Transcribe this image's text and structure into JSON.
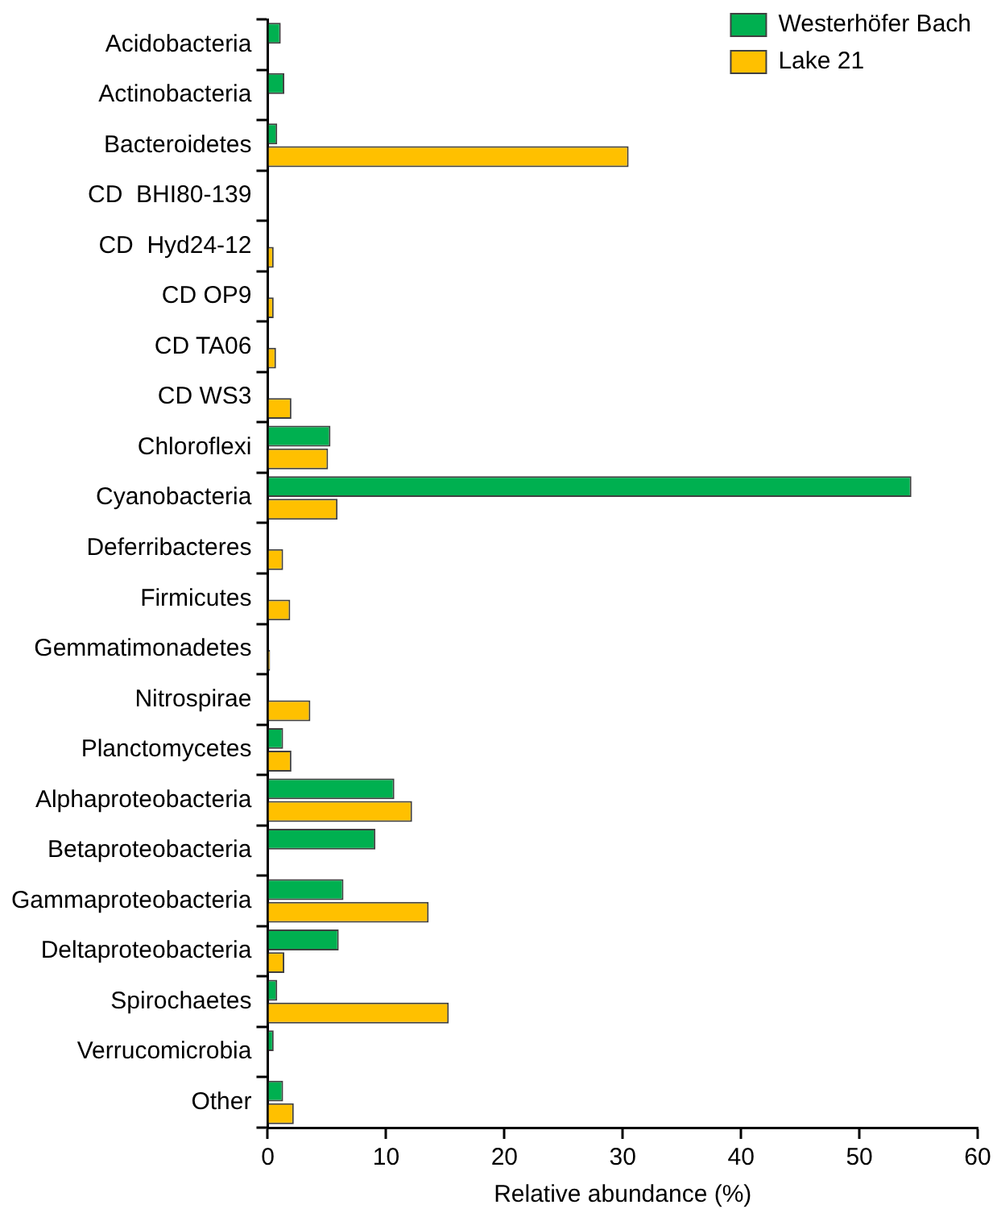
{
  "chart_data": {
    "type": "bar",
    "orientation": "horizontal",
    "xlabel": "Relative abundance (%)",
    "categories": [
      "Acidobacteria",
      "Actinobacteria",
      "Bacteroidetes",
      "CD  BHI80-139",
      "CD  Hyd24-12",
      "CD OP9",
      "CD TA06",
      "CD WS3",
      "Chloroflexi",
      "Cyanobacteria",
      "Deferribacteres",
      "Firmicutes",
      "Gemmatimonadetes",
      "Nitrospirae",
      "Planctomycetes",
      "Alphaproteobacteria",
      "Betaproteobacteria",
      "Gammaproteobacteria",
      "Deltaproteobacteria",
      "Spirochaetes",
      "Verrucomicrobia",
      "Other"
    ],
    "series": [
      {
        "name": "Westerhöfer Bach",
        "color": "#00b050",
        "values": [
          1.1,
          1.4,
          0.8,
          0,
          0,
          0,
          0,
          0,
          5.3,
          54.4,
          0,
          0,
          0,
          0,
          1.3,
          10.7,
          9.1,
          6.4,
          6.0,
          0.8,
          0.5,
          1.3
        ]
      },
      {
        "name": "Lake 21",
        "color": "#ffc000",
        "values": [
          0,
          0,
          30.5,
          0,
          0.5,
          0.5,
          0.7,
          2.0,
          5.1,
          5.9,
          1.3,
          1.9,
          0.2,
          3.6,
          2.0,
          12.2,
          0,
          13.6,
          1.4,
          15.3,
          0,
          2.2
        ]
      }
    ],
    "xlim": [
      0,
      60
    ],
    "xticks": [
      0,
      10,
      20,
      30,
      40,
      50,
      60
    ],
    "grid": false,
    "legend": "top right"
  }
}
